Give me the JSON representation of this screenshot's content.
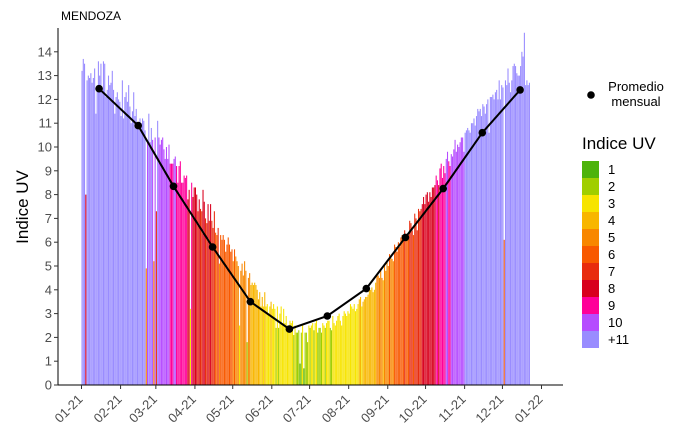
{
  "chart_data": {
    "type": "bar",
    "title": "MENDOZA",
    "xlabel": "",
    "ylabel": "Indice UV",
    "ylim": [
      0,
      15
    ],
    "yticks": [
      0,
      1,
      2,
      3,
      4,
      5,
      6,
      7,
      8,
      9,
      10,
      11,
      12,
      13,
      14
    ],
    "xticks": [
      "01-21",
      "02-21",
      "03-21",
      "04-21",
      "05-21",
      "06-21",
      "07-21",
      "08-21",
      "09-21",
      "10-21",
      "11-21",
      "12-21",
      "01-22"
    ],
    "grid": false,
    "legend_position": "right",
    "daily_uv": [
      13.2,
      13.7,
      13.5,
      8.0,
      12.8,
      13.0,
      12.9,
      13.1,
      12.7,
      12.9,
      13.3,
      11.4,
      12.6,
      13.6,
      13.0,
      13.5,
      12.3,
      13.6,
      13.5,
      12.1,
      12.4,
      13.0,
      12.6,
      12.7,
      13.2,
      12.4,
      11.4,
      12.1,
      12.3,
      12.0,
      11.9,
      11.3,
      12.8,
      11.2,
      12.1,
      12.3,
      11.9,
      12.6,
      11.7,
      11.0,
      11.5,
      12.3,
      11.3,
      11.6,
      11.0,
      10.9,
      11.2,
      11.0,
      11.2,
      11.1,
      10.7,
      4.9,
      10.2,
      11.4,
      10.2,
      10.8,
      10.3,
      5.2,
      10.4,
      7.3,
      11.1,
      10.4,
      10.1,
      10.3,
      10.4,
      9.9,
      9.5,
      10.0,
      9.5,
      10.1,
      9.3,
      9.3,
      9.3,
      9.5,
      9.6,
      9.2,
      8.5,
      9.2,
      9.4,
      8.5,
      8.5,
      8.8,
      8.7,
      8.8,
      7.8,
      8.2,
      3.2,
      8.5,
      7.9,
      8.3,
      8.3,
      8.0,
      7.3,
      7.8,
      7.4,
      7.3,
      8.2,
      7.7,
      7.0,
      6.8,
      7.6,
      6.9,
      7.6,
      6.9,
      6.6,
      7.3,
      6.4,
      6.3,
      6.6,
      5.1,
      6.3,
      6.1,
      6.3,
      6.1,
      5.6,
      5.9,
      6.2,
      5.9,
      5.6,
      5.7,
      5.2,
      5.7,
      5.4,
      5.2,
      5.0,
      2.5,
      4.8,
      5.1,
      4.6,
      5.2,
      4.8,
      1.8,
      4.5,
      4.7,
      4.2,
      4.3,
      4.2,
      4.3,
      4.2,
      4.0,
      3.6,
      3.9,
      3.3,
      3.7,
      3.3,
      3.9,
      3.3,
      3.4,
      3.0,
      3.3,
      3.5,
      3.2,
      3.4,
      3.2,
      2.4,
      3.3,
      2.4,
      3.0,
      3.3,
      2.5,
      3.2,
      2.6,
      2.9,
      2.5,
      2.5,
      2.7,
      2.6,
      2.7,
      2.1,
      2.5,
      2.2,
      2.2,
      2.3,
      0.9,
      2.2,
      2.5,
      0.7,
      2.2,
      2.2,
      1.8,
      2.5,
      2.4,
      2.5,
      2.6,
      2.3,
      2.6,
      2.7,
      2.2,
      2.4,
      2.4,
      2.2,
      2.6,
      2.5,
      2.4,
      2.6,
      2.7,
      2.7,
      2.4,
      2.3,
      2.9,
      2.6,
      2.5,
      2.7,
      2.9,
      3.0,
      2.7,
      2.5,
      2.9,
      3.1,
      3.0,
      2.9,
      3.1,
      3.0,
      3.4,
      3.3,
      3.2,
      3.4,
      3.1,
      3.2,
      3.4,
      3.6,
      3.7,
      3.3,
      3.5,
      3.6,
      3.7,
      3.7,
      3.8,
      4.0,
      4.0,
      4.1,
      3.9,
      4.0,
      4.3,
      4.6,
      4.6,
      4.5,
      4.8,
      4.5,
      4.4,
      5.0,
      4.8,
      5.2,
      5.0,
      5.5,
      5.4,
      5.3,
      5.2,
      5.9,
      5.8,
      5.6,
      6.0,
      5.8,
      6.2,
      6.3,
      6.2,
      6.5,
      6.3,
      6.3,
      6.3,
      6.9,
      6.8,
      6.5,
      6.3,
      7.2,
      7.0,
      6.5,
      7.4,
      7.3,
      7.4,
      7.6,
      7.9,
      7.6,
      8.0,
      8.1,
      7.7,
      8.1,
      7.9,
      8.3,
      8.3,
      8.4,
      8.8,
      8.6,
      8.4,
      9.1,
      9.3,
      8.7,
      9.2,
      8.9,
      9.5,
      9.8,
      9.4,
      9.2,
      9.7,
      9.6,
      9.9,
      10.3,
      9.8,
      10.1,
      10.0,
      10.2,
      10.4,
      10.4,
      9.8,
      10.6,
      10.7,
      10.8,
      10.7,
      10.6,
      11.0,
      11.0,
      11.2,
      10.9,
      11.3,
      11.6,
      11.5,
      11.6,
      11.3,
      11.8,
      11.7,
      11.4,
      11.8,
      12.0,
      10.6,
      12.1,
      12.1,
      12.2,
      12.0,
      12.3,
      12.4,
      12.0,
      12.8,
      12.0,
      12.6,
      12.5,
      6.1,
      12.8,
      12.6,
      13.3,
      12.7,
      12.3,
      12.8,
      13.4,
      13.5,
      13.4,
      13.1,
      13.0,
      13.0,
      13.4,
      14.0,
      13.8,
      14.8,
      12.6,
      12.8,
      12.6,
      12.7
    ],
    "series": [
      {
        "name": "Promedio mensual",
        "type": "line",
        "dates": [
          "2021-01-15",
          "2021-02-15",
          "2021-03-15",
          "2021-04-15",
          "2021-05-15",
          "2021-06-15",
          "2021-07-15",
          "2021-08-15",
          "2021-09-15",
          "2021-10-15",
          "2021-11-15",
          "2021-12-15"
        ],
        "values": [
          12.45,
          10.9,
          8.35,
          5.8,
          3.5,
          2.35,
          2.9,
          4.05,
          6.2,
          8.25,
          10.6,
          12.4
        ]
      }
    ],
    "legend": {
      "point_label": "Promedio\nmensual",
      "title": "Indice UV",
      "levels": [
        {
          "label": "1",
          "color": "#4DB30B"
        },
        {
          "label": "2",
          "color": "#A0CE00"
        },
        {
          "label": "3",
          "color": "#F7E400"
        },
        {
          "label": "4",
          "color": "#F8B600"
        },
        {
          "label": "5",
          "color": "#F88700"
        },
        {
          "label": "6",
          "color": "#F85900"
        },
        {
          "label": "7",
          "color": "#E82C0E"
        },
        {
          "label": "8",
          "color": "#D8001D"
        },
        {
          "label": "9",
          "color": "#FF0099"
        },
        {
          "label": "10",
          "color": "#B54CFF"
        },
        {
          "label": "+11",
          "color": "#998CFF"
        }
      ]
    }
  }
}
